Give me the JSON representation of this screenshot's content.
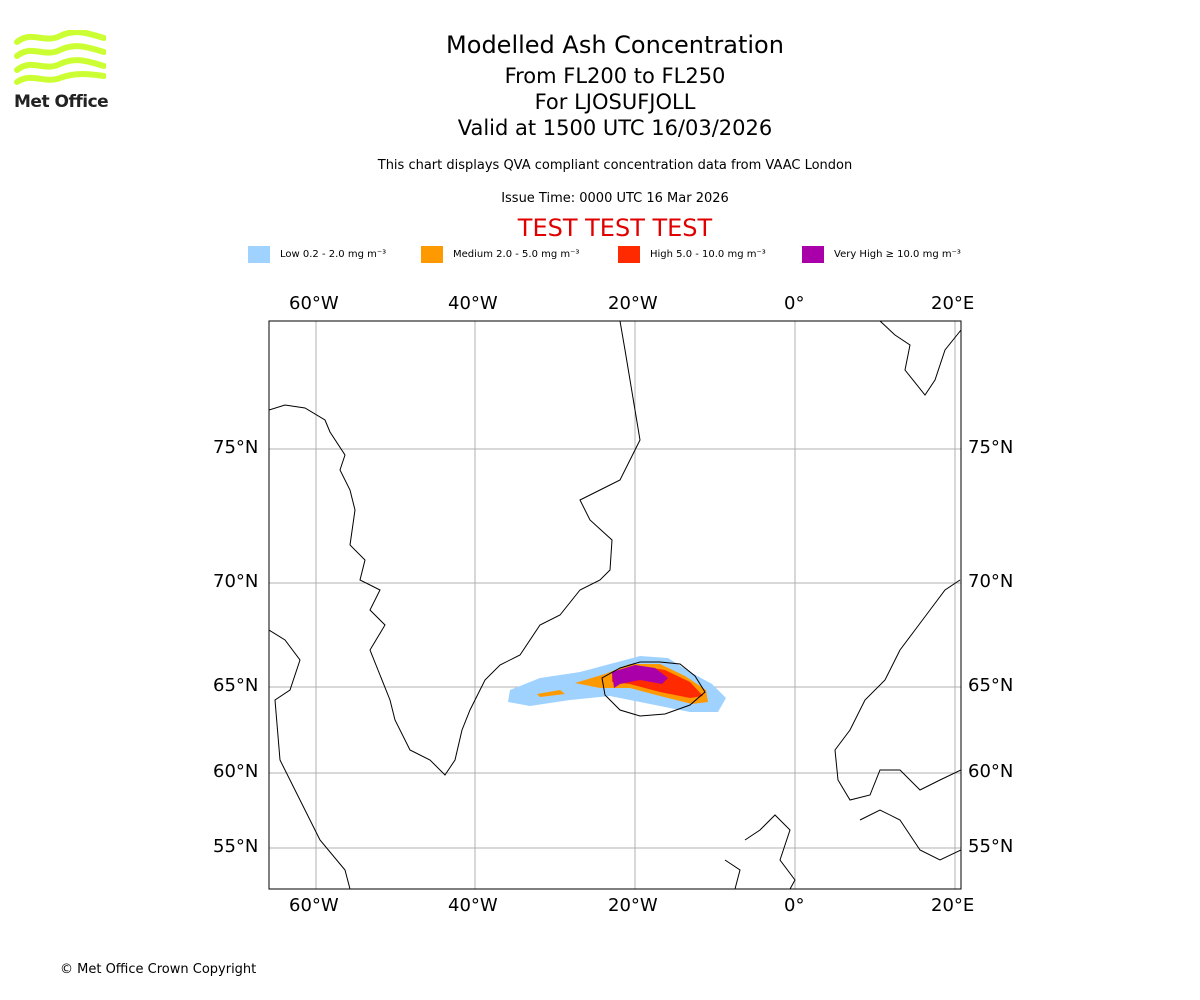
{
  "logo": {
    "text": "Met Office",
    "color": "#ccff33"
  },
  "header": {
    "title": "Modelled Ash Concentration",
    "levels": "From FL200 to FL250",
    "volcano": "For LJOSUFJOLL",
    "valid": "Valid at 1500 UTC 16/03/2026",
    "description": "This chart displays QVA compliant concentration data from VAAC London",
    "issue_time": "Issue Time: 0000 UTC 16 Mar 2026",
    "test_banner": "TEST TEST TEST"
  },
  "legend": [
    {
      "label": "Low 0.2 - 2.0 mg m⁻³",
      "color": "#a0d2ff"
    },
    {
      "label": "Medium 2.0 - 5.0 mg m⁻³",
      "color": "#ff9900"
    },
    {
      "label": "High 5.0 - 10.0 mg m⁻³",
      "color": "#ff2a00"
    },
    {
      "label": "Very High ≥ 10.0 mg m⁻³",
      "color": "#aa00aa"
    }
  ],
  "axes": {
    "lon_labels": [
      "60°W",
      "40°W",
      "20°W",
      "0°",
      "20°E"
    ],
    "lat_labels": [
      "75°N",
      "70°N",
      "65°N",
      "60°N",
      "55°N"
    ]
  },
  "footer": {
    "copyright": "© Met Office Crown Copyright"
  }
}
